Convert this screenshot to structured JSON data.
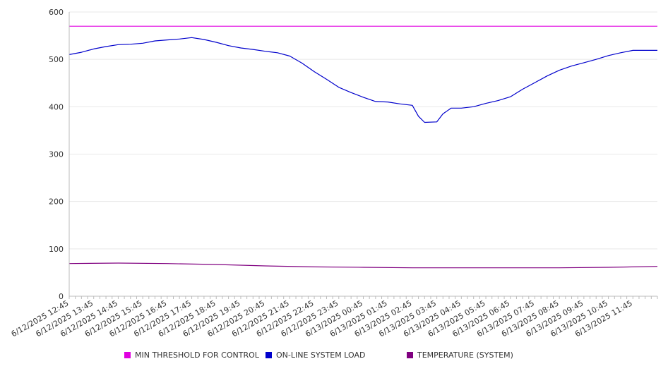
{
  "chart_data": {
    "type": "line",
    "title": "",
    "xlabel": "",
    "ylabel": "",
    "ylim": [
      0,
      600
    ],
    "yticks": [
      0,
      100,
      200,
      300,
      400,
      500,
      600
    ],
    "grid": "horizontal",
    "legend_position": "bottom",
    "x_tick_labels": [
      "6/12/2025 12:45",
      "6/12/2025 13:45",
      "6/12/2025 14:45",
      "6/12/2025 15:45",
      "6/12/2025 16:45",
      "6/12/2025 17:45",
      "6/12/2025 18:45",
      "6/12/2025 19:45",
      "6/12/2025 20:45",
      "6/12/2025 21:45",
      "6/12/2025 22:45",
      "6/12/2025 23:45",
      "6/13/2025 00:45",
      "6/13/2025 01:45",
      "6/13/2025 02:45",
      "6/13/2025 03:45",
      "6/13/2025 04:45",
      "6/13/2025 05:45",
      "6/13/2025 06:45",
      "6/13/2025 07:45",
      "6/13/2025 08:45",
      "6/13/2025 09:45",
      "6/13/2025 10:45",
      "6/13/2025 11:45"
    ],
    "series": [
      {
        "name": "MIN THRESHOLD FOR CONTROL",
        "color": "#e000e0",
        "points": [
          [
            "6/12/2025 12:45",
            570
          ],
          [
            "6/13/2025 12:45",
            570
          ]
        ]
      },
      {
        "name": "ON-LINE SYSTEM LOAD",
        "color": "#0000cc",
        "points": [
          [
            "6/12/2025 12:45",
            510
          ],
          [
            "6/12/2025 13:15",
            515
          ],
          [
            "6/12/2025 13:45",
            522
          ],
          [
            "6/12/2025 14:15",
            527
          ],
          [
            "6/12/2025 14:45",
            531
          ],
          [
            "6/12/2025 15:15",
            532
          ],
          [
            "6/12/2025 15:45",
            534
          ],
          [
            "6/12/2025 16:15",
            539
          ],
          [
            "6/12/2025 16:45",
            541
          ],
          [
            "6/12/2025 17:15",
            543
          ],
          [
            "6/12/2025 17:45",
            546
          ],
          [
            "6/12/2025 18:15",
            542
          ],
          [
            "6/12/2025 18:45",
            536
          ],
          [
            "6/12/2025 19:15",
            529
          ],
          [
            "6/12/2025 19:45",
            524
          ],
          [
            "6/12/2025 20:15",
            521
          ],
          [
            "6/12/2025 20:45",
            517
          ],
          [
            "6/12/2025 21:15",
            514
          ],
          [
            "6/12/2025 21:45",
            507
          ],
          [
            "6/12/2025 22:15",
            492
          ],
          [
            "6/12/2025 22:45",
            474
          ],
          [
            "6/12/2025 23:15",
            458
          ],
          [
            "6/12/2025 23:45",
            441
          ],
          [
            "6/13/2025 00:15",
            430
          ],
          [
            "6/13/2025 00:45",
            420
          ],
          [
            "6/13/2025 01:15",
            411
          ],
          [
            "6/13/2025 01:45",
            410
          ],
          [
            "6/13/2025 02:15",
            406
          ],
          [
            "6/13/2025 02:45",
            403
          ],
          [
            "6/13/2025 03:00",
            380
          ],
          [
            "6/13/2025 03:15",
            367
          ],
          [
            "6/13/2025 03:45",
            368
          ],
          [
            "6/13/2025 04:00",
            385
          ],
          [
            "6/13/2025 04:20",
            397
          ],
          [
            "6/13/2025 04:45",
            397
          ],
          [
            "6/13/2025 05:15",
            400
          ],
          [
            "6/13/2025 05:45",
            407
          ],
          [
            "6/13/2025 06:15",
            413
          ],
          [
            "6/13/2025 06:45",
            421
          ],
          [
            "6/13/2025 07:15",
            437
          ],
          [
            "6/13/2025 07:45",
            451
          ],
          [
            "6/13/2025 08:15",
            465
          ],
          [
            "6/13/2025 08:45",
            477
          ],
          [
            "6/13/2025 09:15",
            486
          ],
          [
            "6/13/2025 09:45",
            493
          ],
          [
            "6/13/2025 10:15",
            500
          ],
          [
            "6/13/2025 10:45",
            508
          ],
          [
            "6/13/2025 11:15",
            514
          ],
          [
            "6/13/2025 11:45",
            519
          ],
          [
            "6/13/2025 12:15",
            519
          ],
          [
            "6/13/2025 12:45",
            519
          ]
        ]
      },
      {
        "name": "TEMPERATURE (SYSTEM)",
        "color": "#800080",
        "points": [
          [
            "6/12/2025 12:45",
            69
          ],
          [
            "6/12/2025 14:45",
            70
          ],
          [
            "6/12/2025 16:45",
            69
          ],
          [
            "6/12/2025 18:45",
            67
          ],
          [
            "6/12/2025 20:45",
            64
          ],
          [
            "6/12/2025 22:45",
            62
          ],
          [
            "6/13/2025 00:45",
            61
          ],
          [
            "6/13/2025 02:45",
            60
          ],
          [
            "6/13/2025 04:45",
            60
          ],
          [
            "6/13/2025 06:45",
            60
          ],
          [
            "6/13/2025 08:45",
            60
          ],
          [
            "6/13/2025 10:45",
            61
          ],
          [
            "6/13/2025 12:45",
            63
          ]
        ]
      }
    ]
  }
}
